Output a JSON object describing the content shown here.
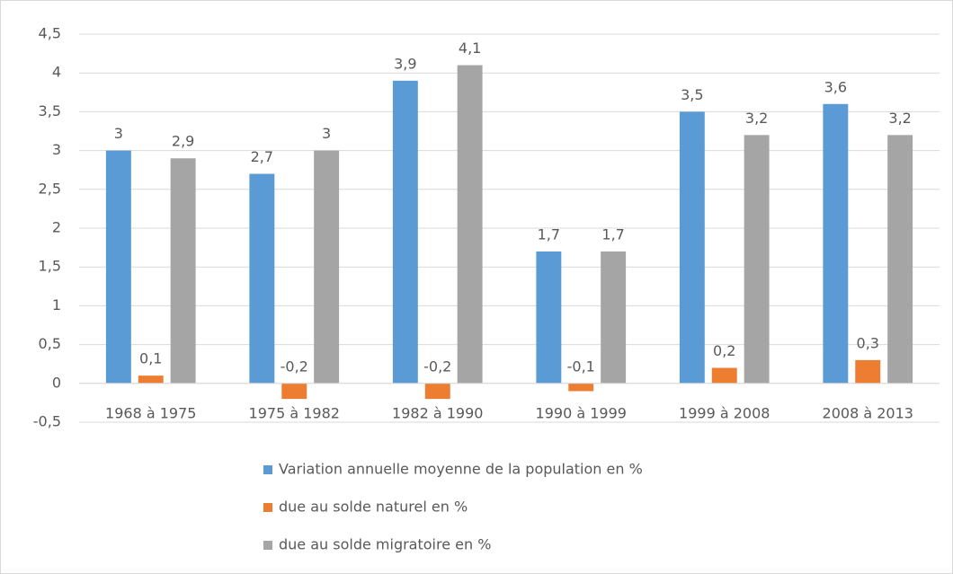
{
  "chart_data": {
    "type": "bar",
    "categories": [
      "1968 à 1975",
      "1975 à 1982",
      "1982 à 1990",
      "1990 à 1999",
      "1999 à 2008",
      "2008 à 2013"
    ],
    "series": [
      {
        "name": "Variation annuelle moyenne de la population en %",
        "color": "#5b9bd5",
        "values": [
          3,
          2.7,
          3.9,
          1.7,
          3.5,
          3.6
        ],
        "value_labels": [
          "3",
          "2,7",
          "3,9",
          "1,7",
          "3,5",
          "3,6"
        ]
      },
      {
        "name": "due au solde naturel en %",
        "color": "#ed7d31",
        "values": [
          0.1,
          -0.2,
          -0.2,
          -0.1,
          0.2,
          0.3
        ],
        "value_labels": [
          "0,1",
          "-0,2",
          "-0,2",
          "-0,1",
          "0,2",
          "0,3"
        ]
      },
      {
        "name": "due au solde migratoire en %",
        "color": "#a5a5a5",
        "values": [
          2.9,
          3,
          4.1,
          1.7,
          3.2,
          3.2
        ],
        "value_labels": [
          "2,9",
          "3",
          "4,1",
          "1,7",
          "3,2",
          "3,2"
        ]
      }
    ],
    "ylim": [
      -0.5,
      4.5
    ],
    "yticks": [
      {
        "value": -0.5,
        "label": "-0,5"
      },
      0,
      {
        "value": 0.5,
        "label": "0,5"
      },
      1,
      {
        "value": 1.5,
        "label": "1,5"
      },
      2,
      {
        "value": 2.5,
        "label": "2,5"
      },
      3,
      {
        "value": 3.5,
        "label": "3,5"
      },
      4,
      {
        "value": 4.5,
        "label": "4,5"
      }
    ],
    "grid": true,
    "legend": "bottom"
  }
}
